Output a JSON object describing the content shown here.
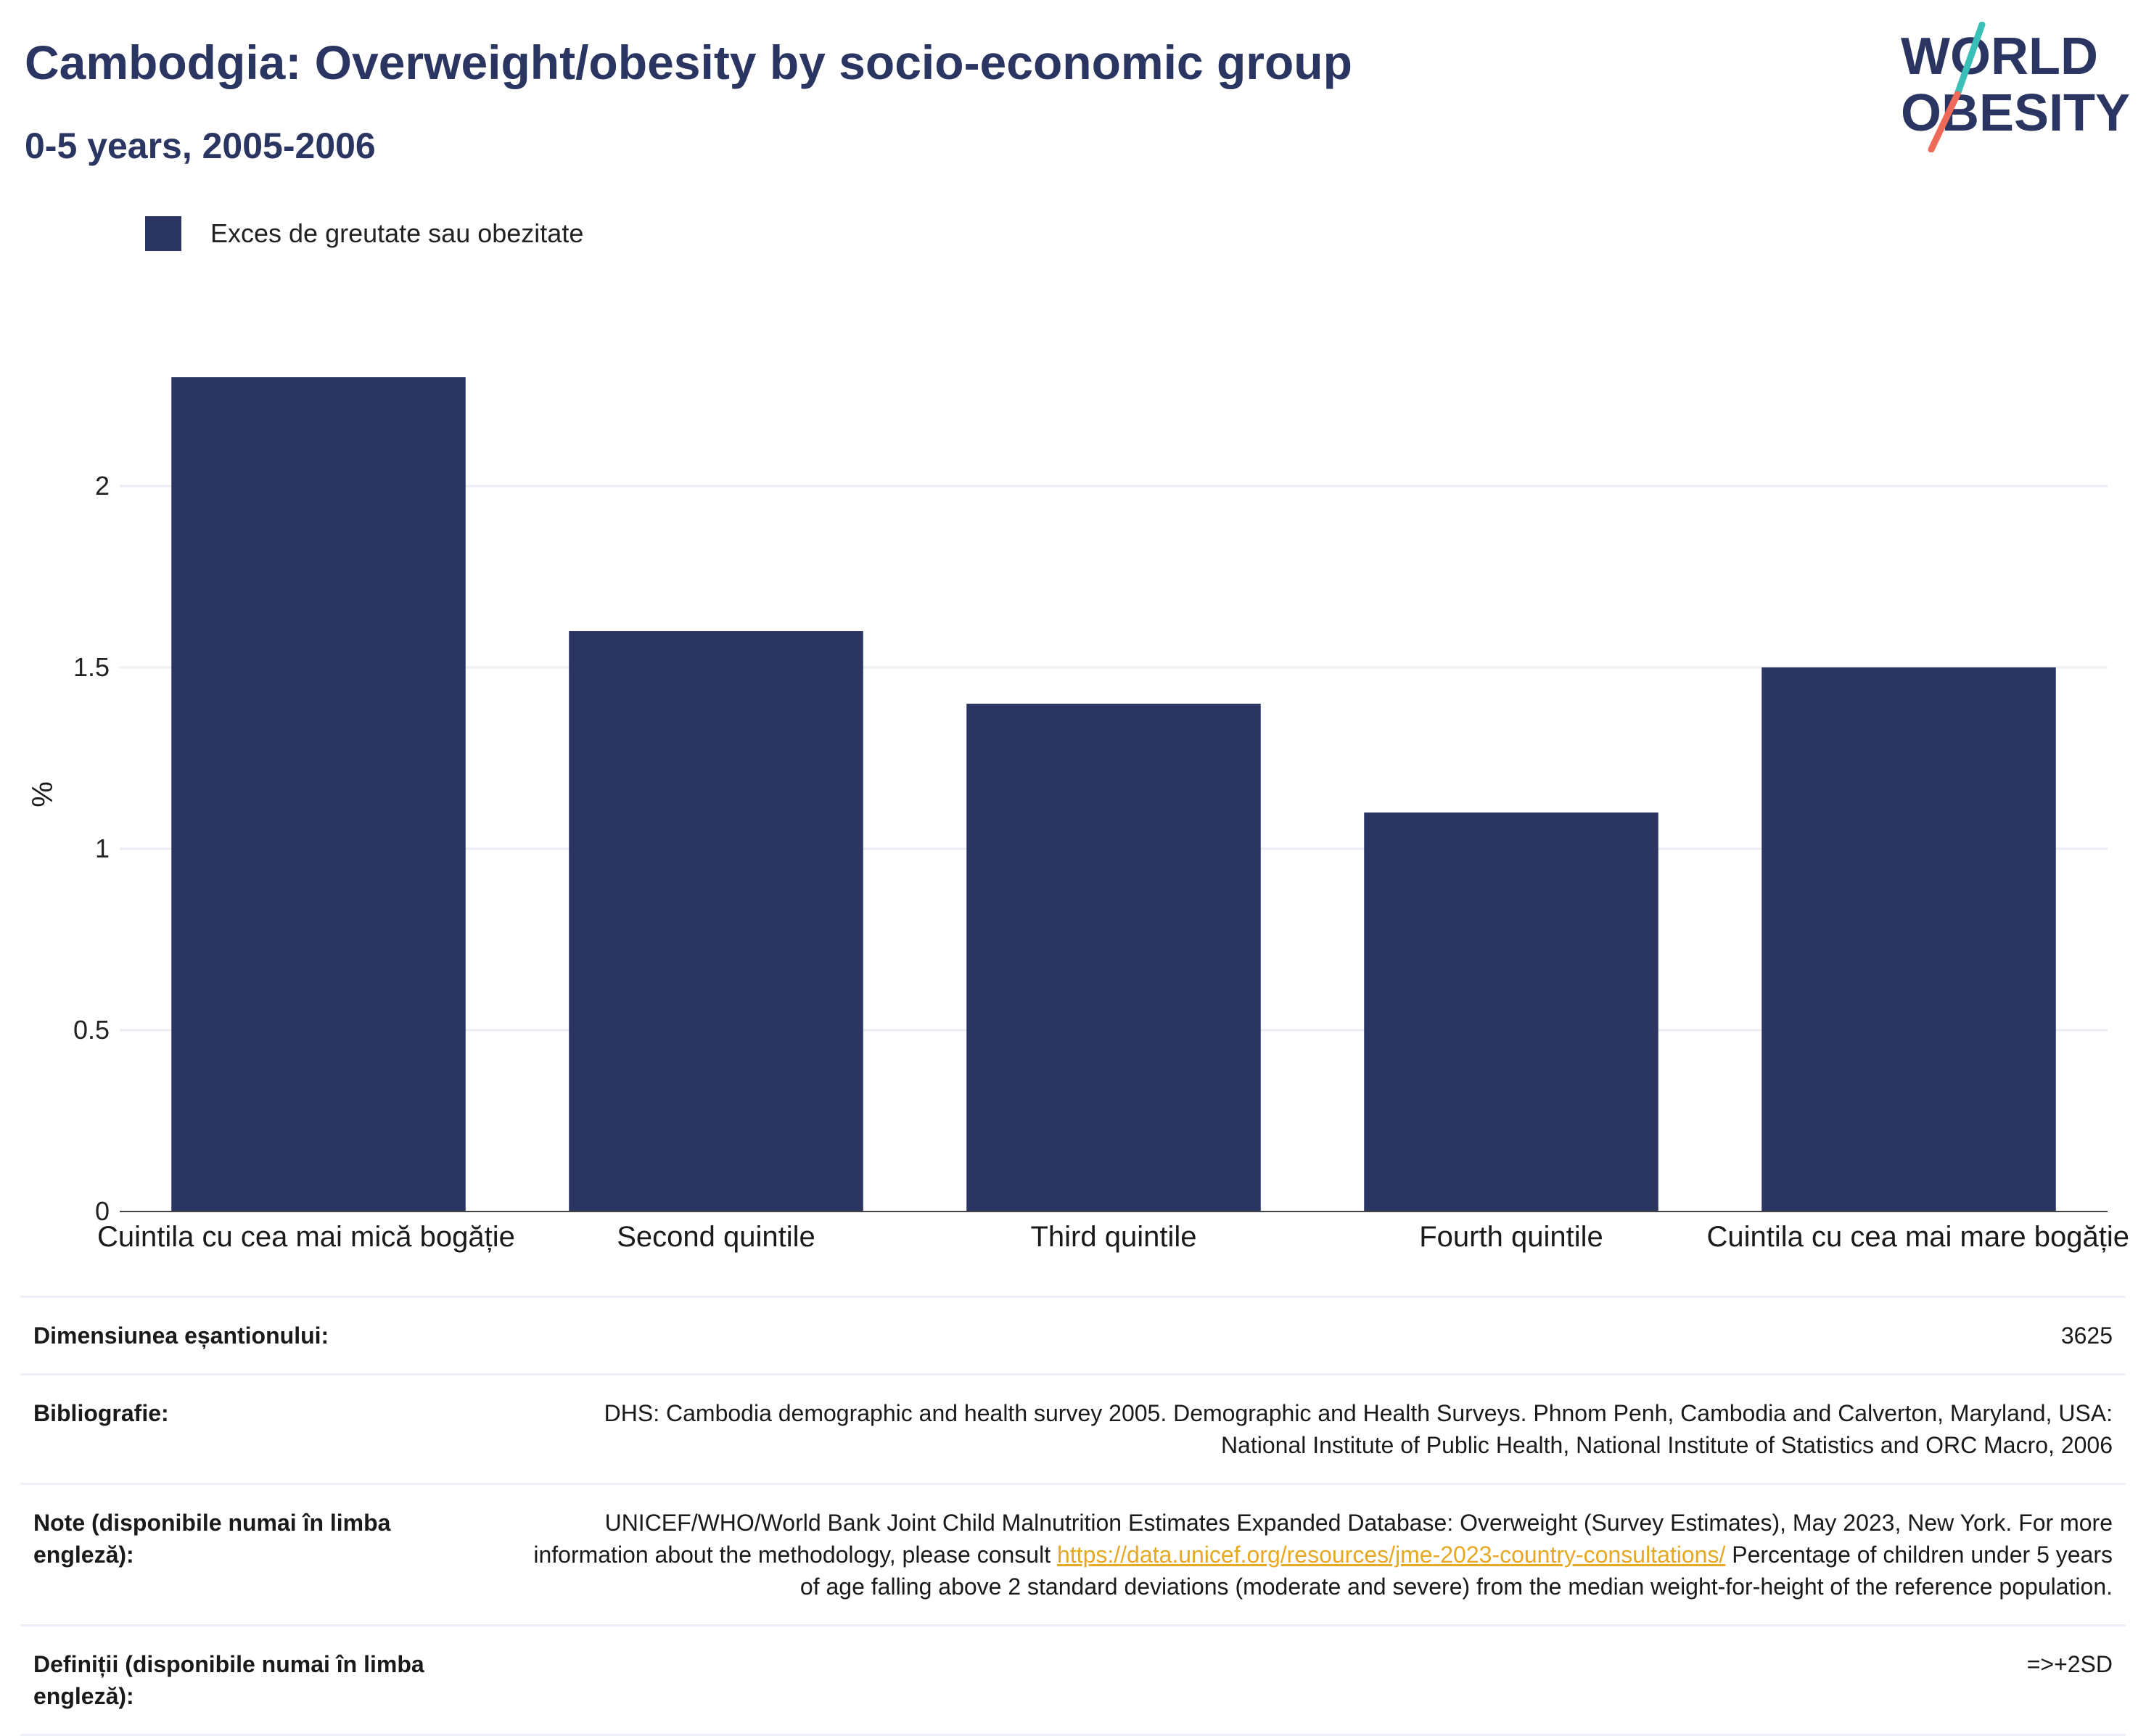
{
  "header": {
    "title": "Cambodgia: Overweight/obesity by socio-economic group",
    "subtitle": "0-5 years, 2005-2006"
  },
  "logo": {
    "line1": "WORLD",
    "line2": "OBESITY"
  },
  "legend": {
    "label": "Exces de greutate sau obezitate",
    "color": "#2a3561"
  },
  "chart_data": {
    "type": "bar",
    "categories": [
      "Cuintila cu cea mai mică bogăție",
      "Second quintile",
      "Third quintile",
      "Fourth quintile",
      "Cuintila cu cea mai mare bogăție"
    ],
    "series": [
      {
        "name": "Exces de greutate sau obezitate",
        "values": [
          2.3,
          1.6,
          1.4,
          1.1,
          1.5
        ],
        "color": "#2a3561"
      }
    ],
    "ylabel": "%",
    "ylim": [
      0,
      2.3
    ],
    "yticks": [
      "0",
      "0.5",
      "1",
      "1.5",
      "2"
    ],
    "grid": true,
    "legend_position": "top-left"
  },
  "info_table": [
    {
      "label": "Dimensiunea eșantionului:",
      "value": "3625"
    },
    {
      "label": "Bibliografie:",
      "value": "DHS: Cambodia demographic and health survey 2005. Demographic and Health Surveys. Phnom Penh, Cambodia and Calverton, Maryland, USA: National Institute of Public Health, National Institute of Statistics and ORC Macro, 2006"
    },
    {
      "label": "Note (disponibile numai în limba engleză):",
      "value_before": "UNICEF/WHO/World Bank Joint Child Malnutrition Estimates Expanded Database: Overweight (Survey Estimates), May 2023, New York. For more information about the methodology, please consult ",
      "link": "https://data.unicef.org/resources/jme-2023-country-consultations/",
      "value_after": " Percentage of children under 5 years of age falling above 2 standard deviations (moderate and severe) from the median weight-for-height of the reference population."
    },
    {
      "label": "Definiții (disponibile numai în limba engleză):",
      "value": "=>+2SD"
    }
  ]
}
